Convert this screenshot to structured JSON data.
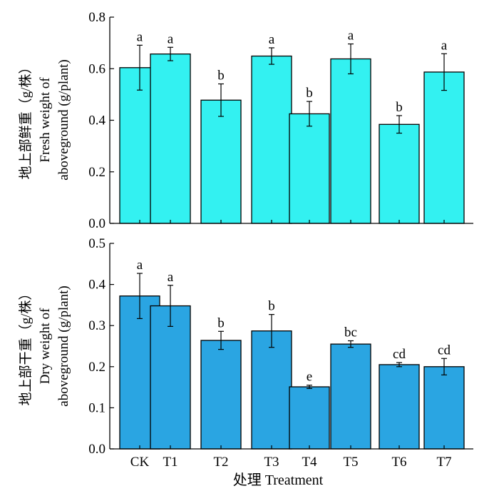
{
  "chart_data": [
    {
      "type": "bar",
      "categories": [
        "CK",
        "T1",
        "T2",
        "T3",
        "T4",
        "T5",
        "T6",
        "T7"
      ],
      "values": [
        0.604,
        0.657,
        0.478,
        0.649,
        0.425,
        0.638,
        0.384,
        0.587
      ],
      "errors": [
        0.087,
        0.026,
        0.063,
        0.032,
        0.048,
        0.058,
        0.034,
        0.071
      ],
      "significance": [
        "a",
        "a",
        "b",
        "a",
        "b",
        "a",
        "b",
        "a"
      ],
      "ylabel_lines": [
        "地上部鲜重（g/株）",
        "Fresh weight of",
        "aboveground (g/plant)"
      ],
      "ylim": [
        0,
        0.8
      ],
      "yticks": [
        "0.0",
        "0.2",
        "0.4",
        "0.6",
        "0.8"
      ],
      "color": "#33f1f1"
    },
    {
      "type": "bar",
      "categories": [
        "CK",
        "T1",
        "T2",
        "T3",
        "T4",
        "T5",
        "T6",
        "T7"
      ],
      "values": [
        0.372,
        0.348,
        0.264,
        0.287,
        0.151,
        0.255,
        0.205,
        0.2
      ],
      "errors": [
        0.055,
        0.05,
        0.022,
        0.04,
        0.004,
        0.008,
        0.005,
        0.02
      ],
      "significance": [
        "a",
        "a",
        "b",
        "b",
        "e",
        "bc",
        "cd",
        "cd"
      ],
      "ylabel_lines": [
        "地上部干重（g/株）",
        "Dry weight of",
        "aboveground (g/plant)"
      ],
      "ylim": [
        0,
        0.5
      ],
      "yticks": [
        "0.0",
        "0.1",
        "0.2",
        "0.3",
        "0.4",
        "0.5"
      ],
      "color": "#2aa5e2"
    }
  ],
  "x_axis": {
    "tick_labels": [
      "CK",
      "T1",
      "T2",
      "T3",
      "T4",
      "T5",
      "T6",
      "T7"
    ],
    "title": "处理 Treatment"
  }
}
